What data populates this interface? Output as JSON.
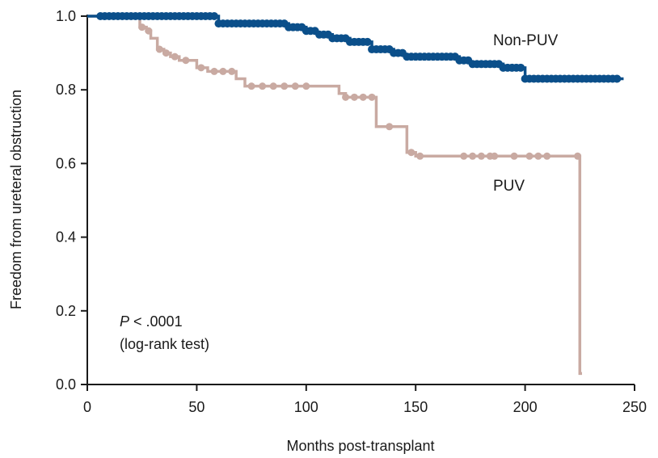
{
  "chart_data": {
    "type": "line",
    "xlabel": "Months post-transplant",
    "ylabel": "Freedom from ureteral obstruction",
    "xlim": [
      0,
      250
    ],
    "ylim": [
      0,
      1.0
    ],
    "xticks": [
      "0",
      "50",
      "100",
      "150",
      "200",
      "250"
    ],
    "yticks": [
      "0.0",
      "0.2",
      "0.4",
      "0.6",
      "0.8",
      "1.0"
    ],
    "grid": false,
    "annotation": {
      "p_label": "P",
      "p_value": " < .0001",
      "test": "(log-rank test)"
    },
    "series": [
      {
        "name": "Non-PUV",
        "color": "#0b4f8a",
        "step_x": [
          0,
          60,
          92,
          100,
          105,
          112,
          120,
          130,
          140,
          145,
          170,
          175,
          190,
          200,
          245
        ],
        "step_y": [
          1.0,
          0.98,
          0.97,
          0.96,
          0.95,
          0.94,
          0.93,
          0.91,
          0.9,
          0.89,
          0.88,
          0.87,
          0.86,
          0.83,
          0.83
        ],
        "censor_x": [
          6,
          8,
          10,
          12,
          14,
          16,
          18,
          20,
          22,
          24,
          26,
          28,
          30,
          32,
          34,
          36,
          38,
          40,
          42,
          44,
          46,
          48,
          50,
          52,
          54,
          56,
          58,
          60,
          62,
          64,
          66,
          68,
          70,
          72,
          74,
          76,
          78,
          80,
          82,
          84,
          86,
          88,
          90,
          92,
          94,
          96,
          98,
          100,
          102,
          104,
          106,
          108,
          110,
          112,
          114,
          116,
          118,
          120,
          122,
          124,
          126,
          128,
          130,
          132,
          134,
          136,
          138,
          140,
          142,
          144,
          146,
          148,
          150,
          152,
          154,
          156,
          158,
          160,
          162,
          164,
          166,
          168,
          170,
          172,
          174,
          176,
          178,
          180,
          182,
          184,
          186,
          188,
          190,
          192,
          194,
          196,
          198,
          200,
          202,
          204,
          206,
          208,
          210,
          212,
          214,
          216,
          218,
          220,
          222,
          224,
          226,
          228,
          230,
          232,
          234,
          236,
          238,
          240,
          242
        ]
      },
      {
        "name": "PUV",
        "color": "#c9aaa2",
        "step_x": [
          0,
          24,
          27,
          29,
          32,
          35,
          38,
          42,
          50,
          55,
          68,
          72,
          115,
          118,
          132,
          136,
          146,
          150,
          225,
          226
        ],
        "step_y": [
          1.0,
          0.97,
          0.96,
          0.94,
          0.91,
          0.9,
          0.89,
          0.88,
          0.86,
          0.85,
          0.83,
          0.81,
          0.79,
          0.78,
          0.7,
          0.7,
          0.63,
          0.62,
          0.03,
          0.03
        ],
        "censor_x": [
          6,
          10,
          14,
          18,
          22,
          25,
          28,
          33,
          36,
          40,
          45,
          52,
          58,
          62,
          66,
          75,
          80,
          85,
          90,
          95,
          100,
          118,
          122,
          126,
          130,
          138,
          148,
          152,
          172,
          176,
          180,
          184,
          186,
          195,
          202,
          206,
          210,
          224
        ]
      }
    ]
  }
}
